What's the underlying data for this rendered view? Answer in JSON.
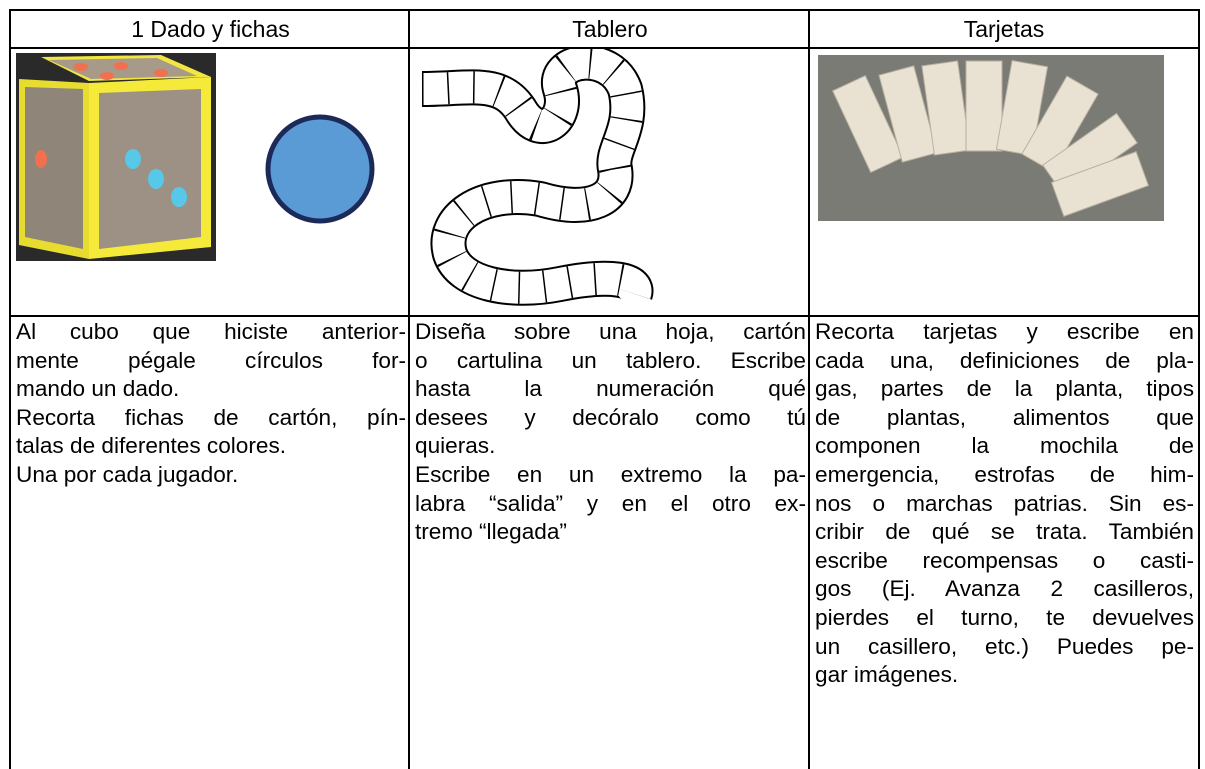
{
  "table": {
    "header": [
      "1 Dado y fichas",
      "Tablero",
      "Tarjetas"
    ],
    "cells": [
      [
        [
          "Al cubo que hiciste anterior-",
          "mente pégale círculos for-",
          "mando un dado."
        ],
        [
          "Recorta fichas de cartón, pín-",
          "talas de diferentes colores."
        ],
        [
          "Una por cada jugador."
        ]
      ],
      [
        [
          "Diseña sobre una hoja, cartón",
          "o cartulina un tablero. Escribe",
          "hasta la numeración qué",
          "desees y decóralo como tú",
          "quieras."
        ],
        [
          "Escribe en un extremo la pa-",
          "labra “salida” y en el otro ex-",
          "tremo “llegada”"
        ]
      ],
      [
        [
          "Recorta tarjetas y escribe en",
          "cada una, definiciones de pla-",
          "gas, partes de la planta, tipos",
          "de plantas, alimentos que",
          "componen la mochila de",
          "emergencia, estrofas de him-",
          "nos o marchas patrias. Sin es-",
          "cribir de qué se trata. También",
          "escribe recompensas o casti-",
          "gos (Ej. Avanza 2 casilleros,",
          "pierdes el turno, te devuelves",
          "un casillero, etc.) Puedes pe-",
          "gar imágenes."
        ]
      ]
    ]
  }
}
